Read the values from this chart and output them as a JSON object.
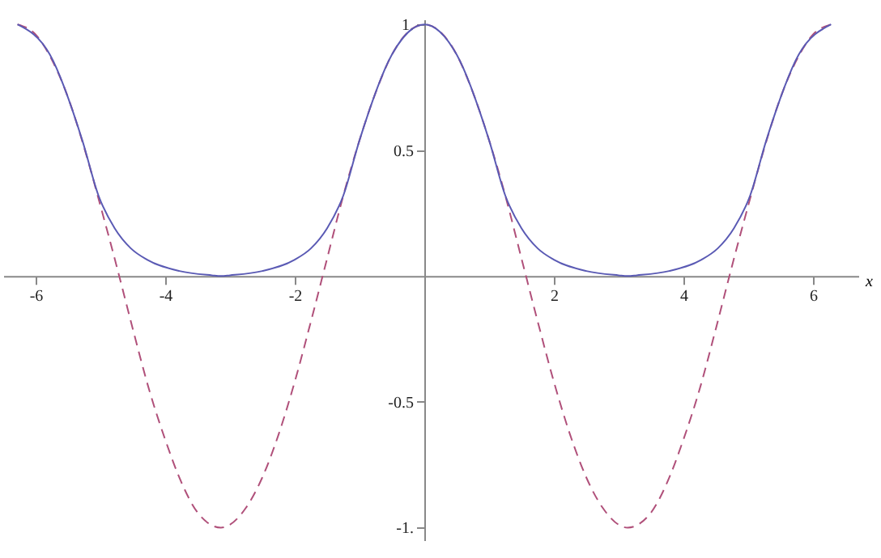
{
  "chart_data": {
    "type": "line",
    "xlabel": "x",
    "xlim": [
      -6.5,
      6.7
    ],
    "ylim": [
      -1.05,
      1.02
    ],
    "xticks": [
      -6,
      -4,
      -2,
      2,
      4,
      6
    ],
    "yticks": [
      {
        "value": -1,
        "label": "-1."
      },
      -0.5,
      0.5,
      {
        "value": 1,
        "label": "1."
      }
    ],
    "grid": false,
    "series": [
      {
        "color": "#b0507a",
        "line_style": "dashed",
        "x": [
          -6.28,
          -6,
          -5.75,
          -5.5,
          -5.25,
          -5,
          -4.75,
          -4.5,
          -4.25,
          -4,
          -3.75,
          -3.5,
          -3.14,
          -2.75,
          -2.5,
          -2.25,
          -2,
          -1.75,
          -1.5,
          -1.25,
          -1,
          -0.75,
          -0.5,
          -0.25,
          0,
          0.25,
          0.5,
          0.75,
          1,
          1.25,
          1.5,
          1.75,
          2,
          2.25,
          2.5,
          2.75,
          3.14,
          3.5,
          3.75,
          4,
          4.25,
          4.5,
          4.75,
          5,
          5.25,
          5.5,
          5.75,
          6,
          6.28
        ],
        "values": [
          1,
          0.96,
          0.86,
          0.71,
          0.51,
          0.28,
          0.04,
          -0.21,
          -0.45,
          -0.65,
          -0.82,
          -0.94,
          -1,
          -0.92,
          -0.8,
          -0.63,
          -0.42,
          -0.18,
          0.07,
          0.32,
          0.54,
          0.73,
          0.88,
          0.97,
          1,
          0.97,
          0.88,
          0.73,
          0.54,
          0.32,
          0.07,
          -0.18,
          -0.42,
          -0.63,
          -0.8,
          -0.92,
          -1,
          -0.94,
          -0.82,
          -0.65,
          -0.45,
          -0.21,
          0.04,
          0.28,
          0.51,
          0.71,
          0.86,
          0.96,
          1
        ]
      },
      {
        "color": "#5a5ab4",
        "line_style": "solid",
        "x": [
          -6.28,
          -5.78,
          -5.28,
          -5.03,
          -4.78,
          -4.53,
          -4.28,
          -3.78,
          -3.28,
          -3.14,
          -3,
          -2.5,
          -2,
          -1.75,
          -1.5,
          -1.25,
          -1,
          -0.5,
          0,
          0.5,
          1,
          1.25,
          1.5,
          1.75,
          2,
          2.5,
          3,
          3.14,
          3.28,
          3.78,
          4.28,
          4.53,
          4.78,
          5.03,
          5.28,
          5.78,
          6.28
        ],
        "values": [
          1,
          0.88,
          0.54,
          0.32,
          0.19,
          0.11,
          0.065,
          0.02,
          0.003,
          0,
          0.003,
          0.02,
          0.065,
          0.11,
          0.19,
          0.32,
          0.54,
          0.88,
          1,
          0.88,
          0.54,
          0.32,
          0.19,
          0.11,
          0.065,
          0.02,
          0.003,
          0,
          0.003,
          0.02,
          0.065,
          0.11,
          0.19,
          0.32,
          0.54,
          0.88,
          1
        ]
      }
    ]
  }
}
